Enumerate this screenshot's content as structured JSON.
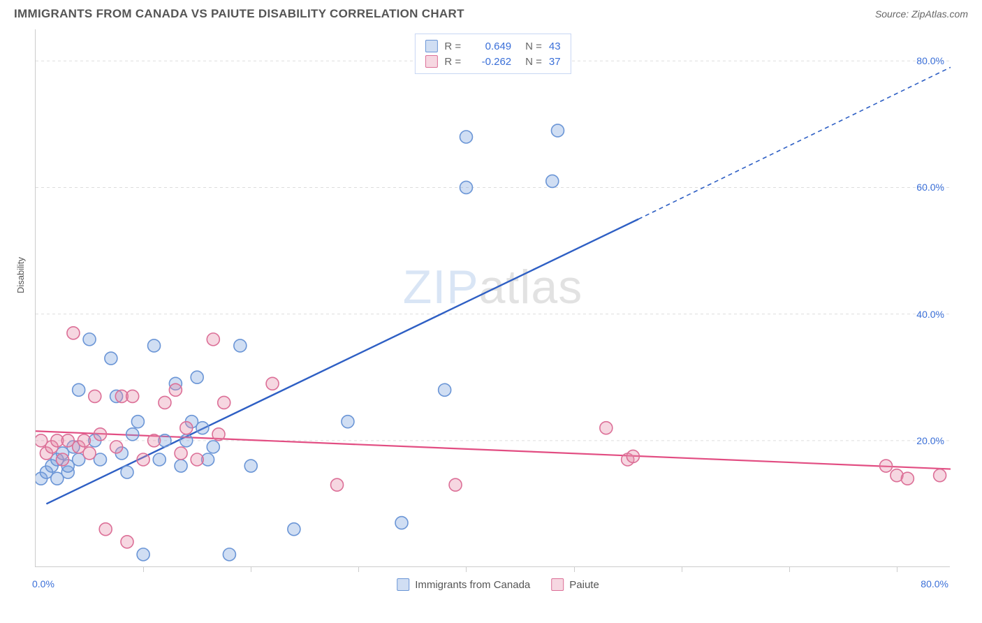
{
  "header": {
    "title": "IMMIGRANTS FROM CANADA VS PAIUTE DISABILITY CORRELATION CHART",
    "source_prefix": "Source: ",
    "source_name": "ZipAtlas.com"
  },
  "chart": {
    "type": "scatter",
    "y_axis_label": "Disability",
    "background_color": "#ffffff",
    "grid_color": "#dddddd",
    "axis_color": "#cccccc",
    "tick_label_color": "#3a6fd8",
    "xlim": [
      0,
      85
    ],
    "ylim": [
      0,
      85
    ],
    "y_ticks": [
      20,
      40,
      60,
      80
    ],
    "y_tick_labels": [
      "20.0%",
      "40.0%",
      "60.0%",
      "80.0%"
    ],
    "x_ticks": [
      10,
      20,
      30,
      40,
      50,
      60,
      70,
      80
    ],
    "x_tick_labels": {
      "0": "0.0%",
      "80": "80.0%"
    },
    "marker_radius": 9,
    "marker_stroke_width": 1.6,
    "watermark": {
      "zip": "ZIP",
      "atlas": "atlas"
    },
    "series": [
      {
        "id": "canada",
        "legend_label": "Immigrants from Canada",
        "fill_color": "rgba(120,160,220,0.35)",
        "stroke_color": "#6a95d6",
        "r_value": "0.649",
        "n_value": "43",
        "trendline": {
          "x1": 1,
          "y1": 10,
          "x2": 56,
          "y2": 55,
          "color": "#2e5fc4",
          "width": 2.4,
          "dash": "none"
        },
        "trendline_ext": {
          "x1": 56,
          "y1": 55,
          "x2": 85,
          "y2": 79,
          "color": "#2e5fc4",
          "width": 1.6,
          "dash": "6,5"
        },
        "points": [
          [
            0.5,
            14
          ],
          [
            1,
            15
          ],
          [
            1.5,
            16
          ],
          [
            2,
            14
          ],
          [
            2,
            17
          ],
          [
            2.5,
            18
          ],
          [
            3,
            15
          ],
          [
            3,
            16
          ],
          [
            3.5,
            19
          ],
          [
            4,
            17
          ],
          [
            4,
            28
          ],
          [
            5,
            36
          ],
          [
            5.5,
            20
          ],
          [
            6,
            17
          ],
          [
            7,
            33
          ],
          [
            7.5,
            27
          ],
          [
            8,
            18
          ],
          [
            8.5,
            15
          ],
          [
            9,
            21
          ],
          [
            9.5,
            23
          ],
          [
            10,
            2
          ],
          [
            11,
            35
          ],
          [
            11.5,
            17
          ],
          [
            12,
            20
          ],
          [
            13,
            29
          ],
          [
            13.5,
            16
          ],
          [
            14,
            20
          ],
          [
            14.5,
            23
          ],
          [
            15,
            30
          ],
          [
            15.5,
            22
          ],
          [
            16,
            17
          ],
          [
            16.5,
            19
          ],
          [
            18,
            2
          ],
          [
            19,
            35
          ],
          [
            20,
            16
          ],
          [
            24,
            6
          ],
          [
            29,
            23
          ],
          [
            34,
            7
          ],
          [
            38,
            28
          ],
          [
            40,
            60
          ],
          [
            40,
            68
          ],
          [
            48,
            61
          ],
          [
            48.5,
            69
          ]
        ]
      },
      {
        "id": "paiute",
        "legend_label": "Paiute",
        "fill_color": "rgba(230,140,170,0.35)",
        "stroke_color": "#dc6f97",
        "r_value": "-0.262",
        "n_value": "37",
        "trendline": {
          "x1": 0,
          "y1": 21.5,
          "x2": 85,
          "y2": 15.5,
          "color": "#e24d82",
          "width": 2.2,
          "dash": "none"
        },
        "points": [
          [
            0.5,
            20
          ],
          [
            1,
            18
          ],
          [
            1.5,
            19
          ],
          [
            2,
            20
          ],
          [
            2.5,
            17
          ],
          [
            3,
            20
          ],
          [
            3.5,
            37
          ],
          [
            4,
            19
          ],
          [
            4.5,
            20
          ],
          [
            5,
            18
          ],
          [
            5.5,
            27
          ],
          [
            6,
            21
          ],
          [
            6.5,
            6
          ],
          [
            7.5,
            19
          ],
          [
            8,
            27
          ],
          [
            8.5,
            4
          ],
          [
            9,
            27
          ],
          [
            10,
            17
          ],
          [
            11,
            20
          ],
          [
            12,
            26
          ],
          [
            13,
            28
          ],
          [
            13.5,
            18
          ],
          [
            14,
            22
          ],
          [
            15,
            17
          ],
          [
            16.5,
            36
          ],
          [
            17,
            21
          ],
          [
            17.5,
            26
          ],
          [
            22,
            29
          ],
          [
            28,
            13
          ],
          [
            39,
            13
          ],
          [
            53,
            22
          ],
          [
            55,
            17
          ],
          [
            55.5,
            17.5
          ],
          [
            79,
            16
          ],
          [
            80,
            14.5
          ],
          [
            81,
            14
          ],
          [
            84,
            14.5
          ]
        ]
      }
    ]
  },
  "legend_top_labels": {
    "R": "R =",
    "N": "N ="
  }
}
